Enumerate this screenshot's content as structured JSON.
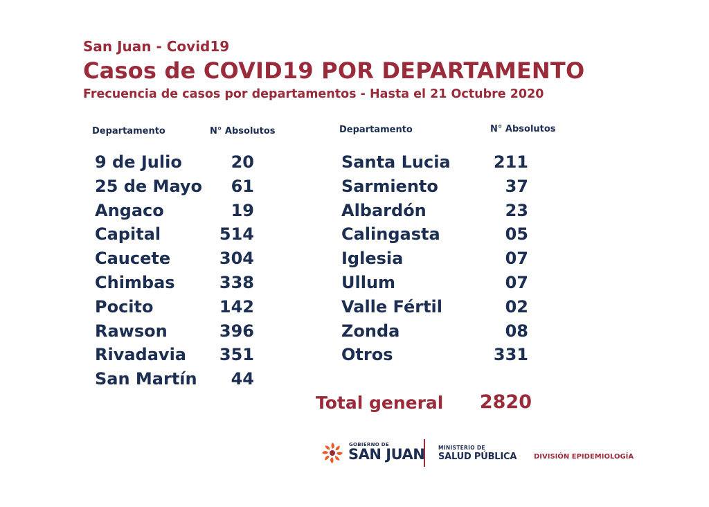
{
  "header": {
    "subtitle_top": "San Juan - Covid19",
    "title": "Casos de COVID19 POR  DEPARTAMENTO",
    "subtitle_date": "Frecuencia de casos por departamentos - Hasta el 21 Octubre 2020"
  },
  "columns": {
    "dept_header": "Departamento",
    "num_header": "N° Absolutos"
  },
  "table_left": [
    {
      "dept": "9 de Julio",
      "value": "20"
    },
    {
      "dept": "25 de Mayo",
      "value": "61"
    },
    {
      "dept": "Angaco",
      "value": "19"
    },
    {
      "dept": "Capital",
      "value": "514"
    },
    {
      "dept": "Caucete",
      "value": "304"
    },
    {
      "dept": "Chimbas",
      "value": "338"
    },
    {
      "dept": "Pocito",
      "value": "142"
    },
    {
      "dept": "Rawson",
      "value": "396"
    },
    {
      "dept": "Rivadavia",
      "value": "351"
    },
    {
      "dept": "San Martín",
      "value": "44"
    }
  ],
  "table_right": [
    {
      "dept": "Santa Lucia",
      "value": "211"
    },
    {
      "dept": "Sarmiento",
      "value": "37"
    },
    {
      "dept": "Albardón",
      "value": "23"
    },
    {
      "dept": "Calingasta",
      "value": "05"
    },
    {
      "dept": "Iglesia",
      "value": "07"
    },
    {
      "dept": "Ullum",
      "value": "07"
    },
    {
      "dept": "Valle Fértil",
      "value": "02"
    },
    {
      "dept": "Zonda",
      "value": "08"
    },
    {
      "dept": "Otros",
      "value": "331"
    }
  ],
  "total": {
    "label": "Total general",
    "value": "2820"
  },
  "footer": {
    "gov_small": "GOBIERNO DE",
    "gov_big": "SAN JUAN",
    "ministry_small": "MINISTERIO DE",
    "ministry_big": "SALUD PÚBLICA",
    "division": "DIVISIÓN EPIDEMIOLOGÍA",
    "gov_logo_icon": "sun-logo-icon"
  },
  "colors": {
    "accent": "#9a2b3a",
    "text": "#1c2e52",
    "logo_orange": "#e85a2a"
  }
}
